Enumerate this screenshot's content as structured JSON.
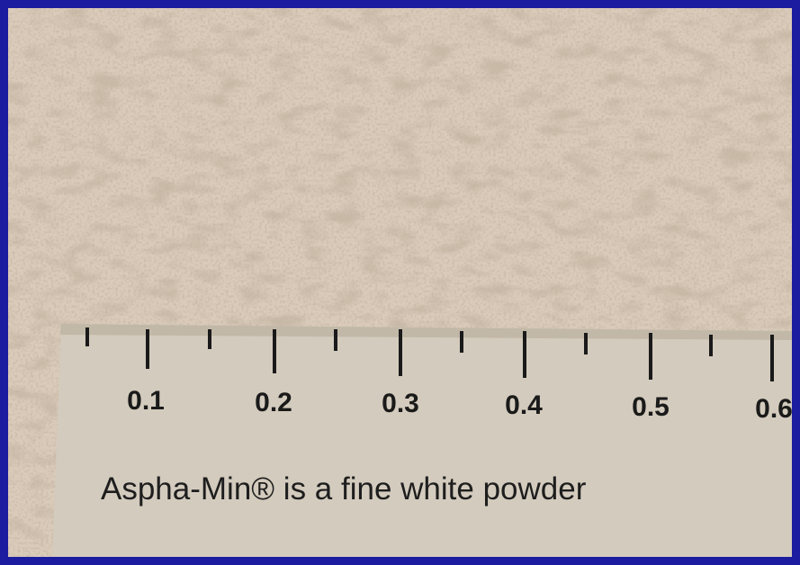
{
  "ruler": {
    "labels": [
      "0.1",
      "0.2",
      "0.3",
      "0.4",
      "0.5",
      "0.6"
    ]
  },
  "caption": "Aspha-Min® is a fine white powder"
}
